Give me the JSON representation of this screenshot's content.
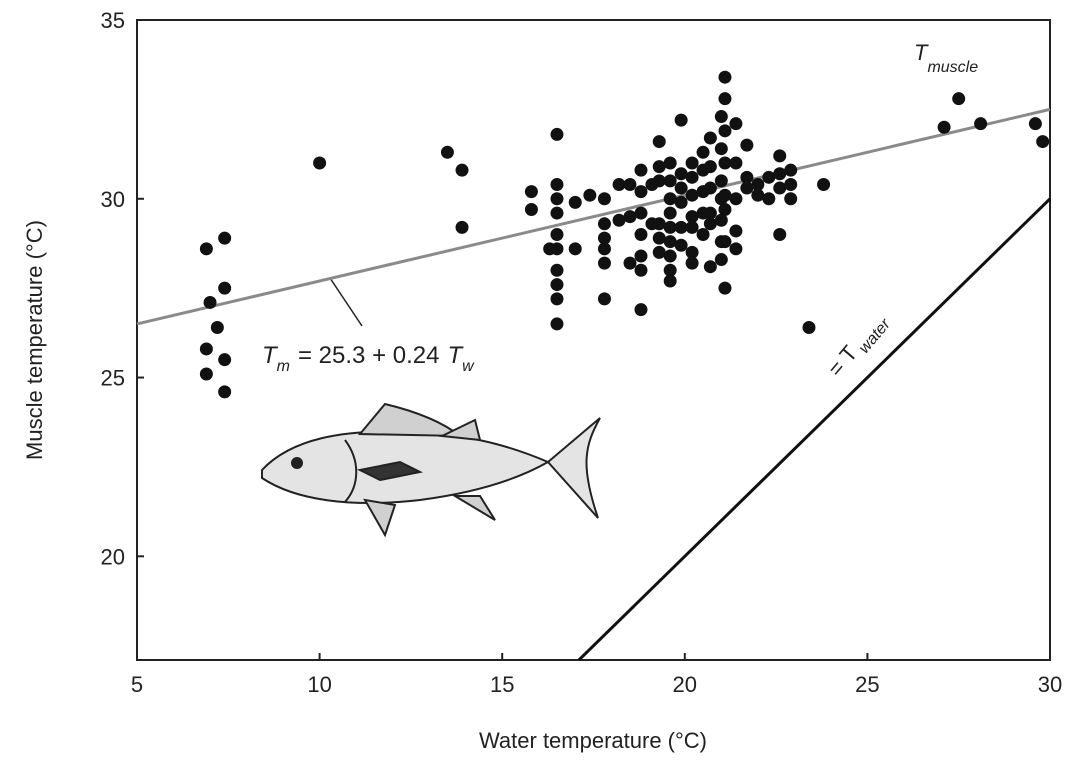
{
  "chart_data": {
    "type": "scatter",
    "xlabel": "Water temperature (°C)",
    "ylabel": "Muscle temperature (°C)",
    "xlim": [
      5,
      30
    ],
    "ylim": [
      17.1,
      35
    ],
    "xticks": [
      5,
      10,
      15,
      20,
      25,
      30
    ],
    "yticks": [
      20,
      25,
      30,
      35
    ],
    "color": "#111111",
    "x": [
      6.9,
      6.9,
      6.9,
      7.0,
      7.2,
      7.4,
      7.4,
      7.4,
      7.4,
      10.0,
      13.5,
      13.9,
      13.9,
      15.8,
      15.8,
      16.5,
      16.5,
      16.5,
      16.5,
      16.5,
      16.5,
      16.5,
      16.5,
      16.5,
      16.5,
      16.3,
      17.0,
      17.0,
      17.4,
      17.8,
      17.8,
      17.8,
      17.8,
      17.8,
      17.8,
      18.2,
      18.2,
      18.5,
      18.5,
      18.5,
      18.8,
      18.8,
      18.8,
      18.8,
      18.8,
      18.8,
      18.8,
      19.1,
      19.1,
      19.3,
      19.3,
      19.3,
      19.3,
      19.3,
      19.3,
      19.6,
      19.6,
      19.6,
      19.6,
      19.6,
      19.6,
      19.6,
      19.6,
      19.6,
      19.9,
      19.9,
      19.9,
      19.9,
      19.9,
      19.9,
      20.2,
      20.2,
      20.2,
      20.2,
      20.2,
      20.2,
      20.2,
      20.5,
      20.5,
      20.5,
      20.5,
      20.5,
      20.7,
      20.7,
      20.7,
      20.7,
      20.7,
      20.7,
      21.0,
      21.0,
      21.0,
      21.0,
      21.0,
      21.0,
      21.0,
      21.1,
      21.1,
      21.1,
      21.1,
      21.1,
      21.1,
      21.1,
      21.1,
      21.4,
      21.4,
      21.4,
      21.4,
      21.4,
      21.7,
      21.7,
      21.7,
      22.0,
      22.0,
      22.3,
      22.3,
      22.6,
      22.6,
      22.6,
      22.6,
      22.9,
      22.9,
      22.9,
      23.8,
      23.4,
      27.1,
      27.5,
      28.1,
      29.6,
      29.8
    ],
    "values": [
      28.6,
      25.8,
      25.1,
      27.1,
      26.4,
      28.9,
      27.5,
      25.5,
      24.6,
      31.0,
      31.3,
      30.8,
      29.2,
      30.2,
      29.7,
      31.8,
      30.4,
      30.0,
      29.6,
      29.0,
      28.6,
      28.0,
      27.6,
      27.2,
      26.5,
      28.6,
      29.9,
      28.6,
      30.1,
      30.0,
      29.3,
      28.9,
      28.6,
      28.2,
      27.2,
      29.4,
      30.4,
      30.4,
      29.5,
      28.2,
      30.8,
      30.2,
      29.6,
      29.0,
      28.4,
      28.0,
      26.9,
      30.4,
      29.3,
      31.6,
      30.9,
      30.5,
      29.3,
      28.9,
      28.5,
      31.0,
      30.5,
      30.0,
      29.6,
      29.2,
      28.8,
      28.4,
      28.0,
      27.7,
      32.2,
      30.7,
      30.3,
      29.9,
      29.2,
      28.7,
      31.0,
      30.6,
      30.1,
      29.5,
      29.2,
      28.5,
      28.2,
      31.3,
      30.8,
      30.2,
      29.6,
      29.0,
      31.7,
      30.9,
      30.3,
      29.6,
      29.3,
      28.1,
      32.3,
      31.4,
      30.5,
      30.0,
      29.4,
      28.8,
      28.3,
      33.4,
      32.8,
      31.9,
      31.0,
      30.1,
      29.7,
      28.8,
      27.5,
      32.1,
      31.0,
      30.0,
      29.1,
      28.6,
      31.5,
      30.6,
      30.3,
      30.4,
      30.1,
      30.6,
      30.0,
      31.2,
      30.7,
      30.3,
      29.0,
      30.8,
      30.4,
      30.0,
      30.4,
      26.4,
      32.0,
      32.8,
      32.1,
      32.1,
      31.6
    ],
    "lines": [
      {
        "x": [
          5,
          30
        ],
        "values": [
          26.5,
          32.5
        ],
        "color": "#8a8a8a"
      },
      {
        "x": [
          17.1,
          30
        ],
        "values": [
          17.1,
          30
        ],
        "color": "#111111"
      }
    ],
    "annotations": {
      "fit": [
        "T",
        "m",
        "= 25.3 + 0.24",
        "T",
        "w"
      ],
      "identity": [
        "= T",
        "water"
      ],
      "muscle": [
        "T",
        "muscle"
      ]
    }
  }
}
